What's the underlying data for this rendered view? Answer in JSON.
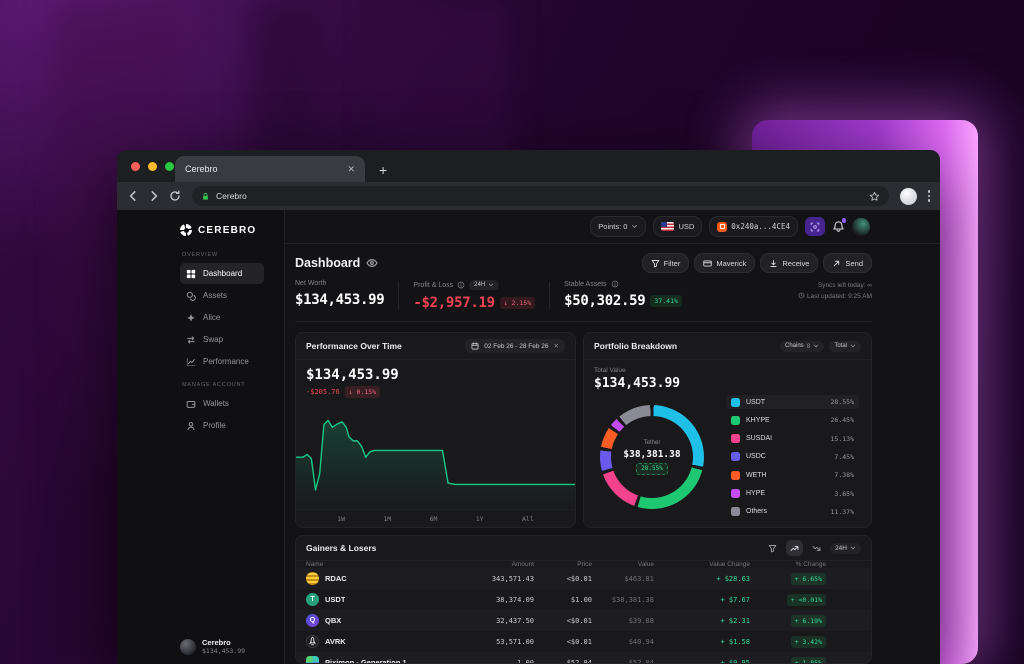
{
  "theme": {
    "green": "#17c985",
    "red": "#ef4456",
    "line_color": "#17c985",
    "donut_gap": "#19191c",
    "purple_accent": "#8b5cf6"
  },
  "browser": {
    "tab_title": "Cerebro",
    "address": "Cerebro"
  },
  "sidebar": {
    "logo_text": "CEREBRO",
    "sections": [
      {
        "label": "OVERVIEW",
        "items": [
          {
            "label": "Dashboard",
            "icon": "grid",
            "active": true
          },
          {
            "label": "Assets",
            "icon": "coins",
            "active": false
          },
          {
            "label": "Alice",
            "icon": "sparkle",
            "active": false
          },
          {
            "label": "Swap",
            "icon": "swap",
            "active": false
          },
          {
            "label": "Performance",
            "icon": "chart",
            "active": false
          }
        ]
      },
      {
        "label": "MANAGE ACCOUNT",
        "items": [
          {
            "label": "Wallets",
            "icon": "wallet",
            "active": false
          },
          {
            "label": "Profile",
            "icon": "person",
            "active": false
          }
        ]
      }
    ],
    "footer": {
      "name": "Cerebro",
      "value": "$134,453.99"
    }
  },
  "topbar": {
    "points_label": "Points: 0",
    "currency": "USD",
    "wallet_address": "0x240a...4CE4"
  },
  "header": {
    "title": "Dashboard",
    "buttons": [
      {
        "label": "Filter",
        "icon": "funnel"
      },
      {
        "label": "Maverick",
        "icon": "card"
      },
      {
        "label": "Receive",
        "icon": "receive"
      },
      {
        "label": "Send",
        "icon": "send"
      }
    ],
    "sync_line1": "Syncs left today: ∞",
    "sync_line2": "Last updated: 9:25 AM"
  },
  "stats": {
    "net_worth": {
      "label": "Net Worth",
      "value": "$134,453.99"
    },
    "pnl": {
      "label": "Profit & Loss",
      "period": "24H",
      "value": "-$2,957.19",
      "badge": "↓ 2.15%"
    },
    "stable": {
      "label": "Stable Assets",
      "value": "$50,302.59",
      "badge": "37.41%"
    }
  },
  "performance": {
    "title": "Performance Over Time",
    "date_range": "02 Feb 26 - 28 Feb 26",
    "value": "$134,453.99",
    "change": "-$205.76",
    "change_badge": "↓ 0.15%",
    "ranges": [
      "1W",
      "1M",
      "6M",
      "1Y",
      "All"
    ]
  },
  "portfolio": {
    "title": "Portfolio Breakdown",
    "chains_label": "Chains",
    "chains_count": "8",
    "total_label": "Total",
    "total_value_label": "Total Value",
    "total_value": "$134,453.99",
    "center": {
      "name": "Tether",
      "value": "$38,381.38",
      "pct": "28.55%"
    },
    "legend": [
      {
        "name": "USDT",
        "pct": "28.55%",
        "color": "#1fc0e7",
        "highlight": true
      },
      {
        "name": "KHYPE",
        "pct": "26.45%",
        "color": "#1ec873",
        "highlight": false
      },
      {
        "name": "SUSDAI",
        "pct": "15.13%",
        "color": "#f5428c",
        "highlight": false
      },
      {
        "name": "USDC",
        "pct": "7.45%",
        "color": "#6a5aec",
        "highlight": false
      },
      {
        "name": "WETH",
        "pct": "7.38%",
        "color": "#fb5c26",
        "highlight": false
      },
      {
        "name": "HYPE",
        "pct": "3.65%",
        "color": "#c44df2",
        "highlight": false
      },
      {
        "name": "Others",
        "pct": "11.37%",
        "color": "#8b8b95",
        "highlight": false
      }
    ]
  },
  "chart_data": [
    {
      "type": "line",
      "title": "Performance Over Time",
      "x_range": [
        "02 Feb 26",
        "28 Feb 26"
      ],
      "y_start_value": 134453.99,
      "points_pct": [
        [
          0,
          21
        ],
        [
          2.5,
          21
        ],
        [
          4,
          20
        ],
        [
          5.5,
          21.5
        ],
        [
          7,
          33
        ],
        [
          8.5,
          27
        ],
        [
          10,
          9
        ],
        [
          11.5,
          7.5
        ],
        [
          13,
          10
        ],
        [
          14.5,
          9
        ],
        [
          16.5,
          8
        ],
        [
          18,
          10
        ],
        [
          19,
          13.5
        ],
        [
          20.5,
          15
        ],
        [
          22,
          15
        ],
        [
          23.5,
          17
        ],
        [
          25,
          21
        ],
        [
          26.5,
          19
        ],
        [
          28,
          18.5
        ],
        [
          30,
          18.5
        ],
        [
          50,
          18.5
        ],
        [
          52.5,
          18.5
        ],
        [
          54.5,
          30.5
        ],
        [
          57,
          31
        ],
        [
          100,
          31
        ]
      ]
    },
    {
      "type": "donut",
      "title": "Portfolio Breakdown",
      "labels": [
        "USDT",
        "KHYPE",
        "SUSDAI",
        "USDC",
        "WETH",
        "HYPE",
        "Others"
      ],
      "values": [
        28.55,
        26.45,
        15.13,
        7.45,
        7.38,
        3.65,
        11.37
      ],
      "colors": [
        "#1fc0e7",
        "#1ec873",
        "#f5428c",
        "#6a5aec",
        "#fb5c26",
        "#c44df2",
        "#8b8b95"
      ],
      "center_label": "Tether",
      "center_value": "$38,381.38",
      "center_pct": "28.55%"
    }
  ],
  "table": {
    "title": "Gainers & Losers",
    "period": "24H",
    "columns": [
      "Name",
      "Amount",
      "Price",
      "Value",
      "Value Change",
      "% Change"
    ],
    "rows": [
      {
        "name": "RDAC",
        "icon": "rdac",
        "amount": "343,571.43",
        "price": "<$0.01",
        "value": "$463.81",
        "value_change": "+ $28.63",
        "pct_change": "+ 6.65%"
      },
      {
        "name": "USDT",
        "icon": "usdt",
        "amount": "38,374.09",
        "price": "$1.00",
        "value": "$38,381.38",
        "value_change": "+ $7.67",
        "pct_change": "+ <0.01%"
      },
      {
        "name": "QBX",
        "icon": "qbx",
        "amount": "32,437.50",
        "price": "<$0.01",
        "value": "$39.08",
        "value_change": "+ $2.31",
        "pct_change": "+ 6.19%"
      },
      {
        "name": "AVRK",
        "icon": "avrk",
        "amount": "53,571.00",
        "price": "<$0.01",
        "value": "$40.94",
        "value_change": "+ $1.58",
        "pct_change": "+ 3.42%"
      },
      {
        "name": "Piximon - Generation 1",
        "icon": "piximon",
        "amount": "1.00",
        "price": "$52.84",
        "value": "$52.84",
        "value_change": "+ $0.95",
        "pct_change": "+ 1.85%"
      }
    ]
  }
}
